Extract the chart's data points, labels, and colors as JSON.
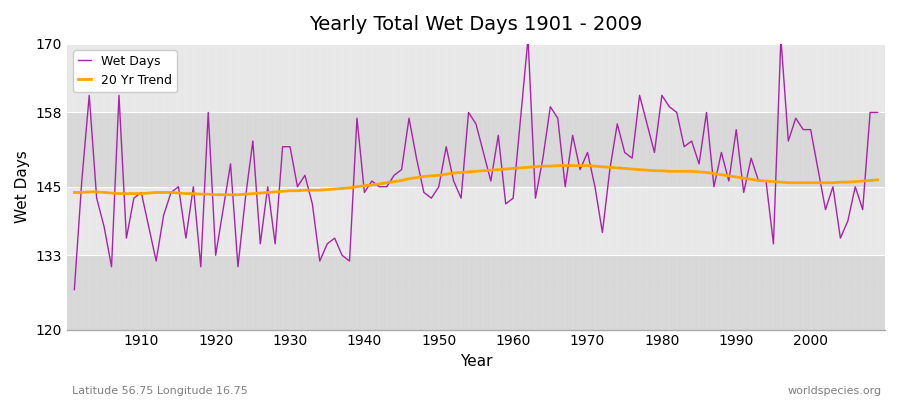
{
  "title": "Yearly Total Wet Days 1901 - 2009",
  "xlabel": "Year",
  "ylabel": "Wet Days",
  "subtitle_left": "Latitude 56.75 Longitude 16.75",
  "subtitle_right": "worldspecies.org",
  "ylim": [
    120,
    170
  ],
  "yticks": [
    120,
    133,
    145,
    158,
    170
  ],
  "start_year": 1901,
  "end_year": 2009,
  "wet_days_color": "#aa22aa",
  "trend_color": "#FFA500",
  "background_color": "#ffffff",
  "plot_bg_color": "#d8d8d8",
  "band_colors": [
    "#d8d8d8",
    "#e8e8e8"
  ],
  "wet_days": [
    127,
    146,
    161,
    143,
    138,
    131,
    161,
    136,
    143,
    144,
    138,
    132,
    140,
    144,
    145,
    136,
    145,
    131,
    158,
    133,
    141,
    149,
    131,
    143,
    153,
    135,
    145,
    135,
    152,
    152,
    145,
    147,
    142,
    132,
    135,
    136,
    133,
    132,
    157,
    144,
    146,
    145,
    145,
    147,
    148,
    157,
    150,
    144,
    143,
    145,
    152,
    146,
    143,
    158,
    156,
    151,
    146,
    154,
    142,
    143,
    157,
    171,
    143,
    150,
    159,
    157,
    145,
    154,
    148,
    151,
    145,
    137,
    148,
    156,
    151,
    150,
    161,
    156,
    151,
    161,
    159,
    158,
    152,
    153,
    149,
    158,
    145,
    151,
    146,
    155,
    144,
    150,
    146,
    146,
    135,
    171,
    153,
    157,
    155,
    155,
    148,
    141,
    145,
    136,
    139,
    145,
    141,
    158,
    158
  ],
  "trend": [
    144.0,
    144.0,
    144.1,
    144.1,
    144.0,
    143.9,
    143.8,
    143.8,
    143.8,
    143.8,
    143.9,
    144.0,
    144.0,
    144.0,
    143.9,
    143.8,
    143.8,
    143.7,
    143.7,
    143.6,
    143.6,
    143.6,
    143.6,
    143.7,
    143.8,
    143.9,
    144.0,
    144.1,
    144.2,
    144.3,
    144.3,
    144.4,
    144.4,
    144.4,
    144.5,
    144.6,
    144.7,
    144.8,
    145.0,
    145.2,
    145.3,
    145.5,
    145.7,
    145.9,
    146.1,
    146.4,
    146.6,
    146.8,
    146.9,
    147.0,
    147.2,
    147.4,
    147.5,
    147.6,
    147.7,
    147.8,
    147.9,
    148.0,
    148.1,
    148.2,
    148.3,
    148.4,
    148.5,
    148.6,
    148.6,
    148.7,
    148.7,
    148.7,
    148.7,
    148.7,
    148.6,
    148.5,
    148.4,
    148.3,
    148.2,
    148.1,
    148.0,
    147.9,
    147.8,
    147.8,
    147.7,
    147.7,
    147.7,
    147.7,
    147.6,
    147.5,
    147.3,
    147.1,
    146.9,
    146.7,
    146.5,
    146.3,
    146.1,
    146.0,
    145.9,
    145.8,
    145.7,
    145.7,
    145.7,
    145.7,
    145.7,
    145.7,
    145.7,
    145.8,
    145.8,
    145.9,
    146.0,
    146.1,
    146.2
  ]
}
